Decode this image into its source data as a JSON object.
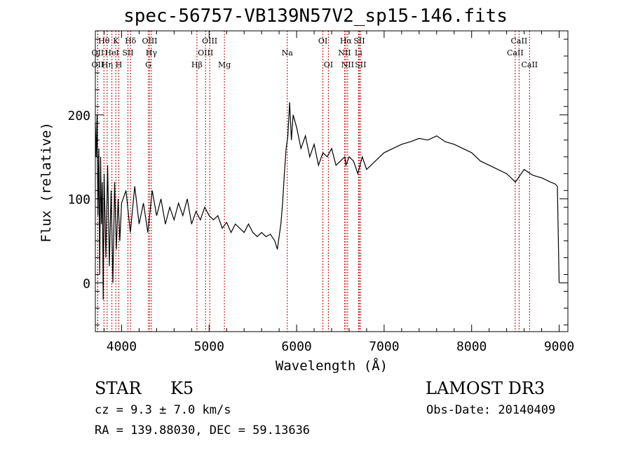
{
  "chart_data": {
    "type": "line",
    "title": "spec-56757-VB139N57V2_sp15-146.fits",
    "xlabel": "Wavelength (Å)",
    "ylabel": "Flux (relative)",
    "xlim": [
      3700,
      9100
    ],
    "ylim": [
      -58,
      300
    ],
    "xticks": [
      {
        "value": 4000,
        "label": "4000"
      },
      {
        "value": 5000,
        "label": "5000"
      },
      {
        "value": 6000,
        "label": "6000"
      },
      {
        "value": 7000,
        "label": "7000"
      },
      {
        "value": 8000,
        "label": "8000"
      },
      {
        "value": 9000,
        "label": "9000"
      }
    ],
    "yticks": [
      {
        "value": 0,
        "label": "0"
      },
      {
        "value": 100,
        "label": "100"
      },
      {
        "value": 200,
        "label": "200"
      }
    ],
    "series": [
      {
        "color": "#000000",
        "x": [
          3700,
          3710,
          3720,
          3730,
          3740,
          3750,
          3760,
          3770,
          3780,
          3790,
          3800,
          3820,
          3840,
          3860,
          3880,
          3900,
          3920,
          3940,
          3960,
          3980,
          4000,
          4050,
          4100,
          4150,
          4200,
          4250,
          4300,
          4350,
          4400,
          4450,
          4500,
          4550,
          4600,
          4650,
          4700,
          4750,
          4800,
          4850,
          4900,
          4950,
          5000,
          5050,
          5100,
          5150,
          5200,
          5250,
          5300,
          5350,
          5400,
          5450,
          5500,
          5550,
          5600,
          5650,
          5700,
          5750,
          5780,
          5800,
          5820,
          5840,
          5860,
          5880,
          5900,
          5920,
          5940,
          5960,
          6000,
          6050,
          6100,
          6150,
          6200,
          6250,
          6300,
          6350,
          6400,
          6450,
          6500,
          6550,
          6563,
          6600,
          6650,
          6700,
          6750,
          6800,
          6850,
          6900,
          6950,
          7000,
          7100,
          7200,
          7300,
          7400,
          7500,
          7600,
          7700,
          7800,
          7900,
          8000,
          8100,
          8200,
          8300,
          8400,
          8500,
          8600,
          8700,
          8800,
          8900,
          8950,
          8980,
          9000
        ],
        "y": [
          190,
          150,
          200,
          80,
          160,
          10,
          150,
          70,
          120,
          -20,
          130,
          30,
          140,
          20,
          110,
          0,
          120,
          40,
          100,
          50,
          95,
          110,
          60,
          115,
          70,
          95,
          60,
          110,
          80,
          100,
          70,
          90,
          75,
          95,
          80,
          100,
          70,
          85,
          75,
          90,
          80,
          75,
          80,
          65,
          72,
          60,
          70,
          65,
          60,
          70,
          60,
          55,
          60,
          55,
          58,
          50,
          40,
          55,
          70,
          95,
          130,
          160,
          175,
          215,
          170,
          200,
          185,
          160,
          175,
          150,
          165,
          140,
          155,
          150,
          160,
          140,
          145,
          150,
          140,
          150,
          145,
          130,
          150,
          135,
          140,
          145,
          150,
          155,
          160,
          165,
          168,
          172,
          170,
          175,
          168,
          165,
          160,
          155,
          145,
          140,
          135,
          130,
          120,
          135,
          128,
          125,
          120,
          118,
          115,
          0
        ]
      }
    ],
    "line_marks": [
      {
        "label": "OII",
        "wavelength": 3727,
        "row": 2
      },
      {
        "label": "OII",
        "wavelength": 3727,
        "row": 3
      },
      {
        "label": "Hθ",
        "wavelength": 3798,
        "row": 1
      },
      {
        "label": "Hη",
        "wavelength": 3835,
        "row": 3
      },
      {
        "label": "HeI",
        "wavelength": 3889,
        "row": 2
      },
      {
        "label": "K",
        "wavelength": 3934,
        "row": 1
      },
      {
        "label": "H",
        "wavelength": 3968,
        "row": 3
      },
      {
        "label": "SII",
        "wavelength": 4072,
        "row": 2
      },
      {
        "label": "Hδ",
        "wavelength": 4102,
        "row": 1
      },
      {
        "label": "G",
        "wavelength": 4305,
        "row": 3
      },
      {
        "label": "OIII",
        "wavelength": 4321,
        "row": 1
      },
      {
        "label": "Hγ",
        "wavelength": 4340,
        "row": 2
      },
      {
        "label": "Hβ",
        "wavelength": 4861,
        "row": 3
      },
      {
        "label": "OIII",
        "wavelength": 4959,
        "row": 2
      },
      {
        "label": "OIII",
        "wavelength": 5007,
        "row": 1
      },
      {
        "label": "Mg",
        "wavelength": 5175,
        "row": 3
      },
      {
        "label": "Na",
        "wavelength": 5893,
        "row": 2
      },
      {
        "label": "OI",
        "wavelength": 6300,
        "row": 1
      },
      {
        "label": "OI",
        "wavelength": 6363,
        "row": 3
      },
      {
        "label": "NII",
        "wavelength": 6548,
        "row": 2
      },
      {
        "label": "Hα",
        "wavelength": 6563,
        "row": 1
      },
      {
        "label": "NII",
        "wavelength": 6583,
        "row": 3
      },
      {
        "label": "Li",
        "wavelength": 6707,
        "row": 2
      },
      {
        "label": "SII",
        "wavelength": 6716,
        "row": 1
      },
      {
        "label": "SII",
        "wavelength": 6731,
        "row": 3
      },
      {
        "label": "CaII",
        "wavelength": 8498,
        "row": 2
      },
      {
        "label": "CaII",
        "wavelength": 8542,
        "row": 1
      },
      {
        "label": "CaII",
        "wavelength": 8662,
        "row": 3
      }
    ],
    "colors": {
      "axes": "#000000",
      "spectrum": "#000000",
      "line_marks": "#c00000"
    }
  },
  "footer": {
    "object_class": "STAR",
    "subclass": "K5",
    "survey": "LAMOST DR3",
    "cz": "cz = 9.3 ± 7.0 km/s",
    "obs_date": "Obs-Date: 20140409",
    "coords": "RA = 139.88030, DEC =  59.13636"
  }
}
